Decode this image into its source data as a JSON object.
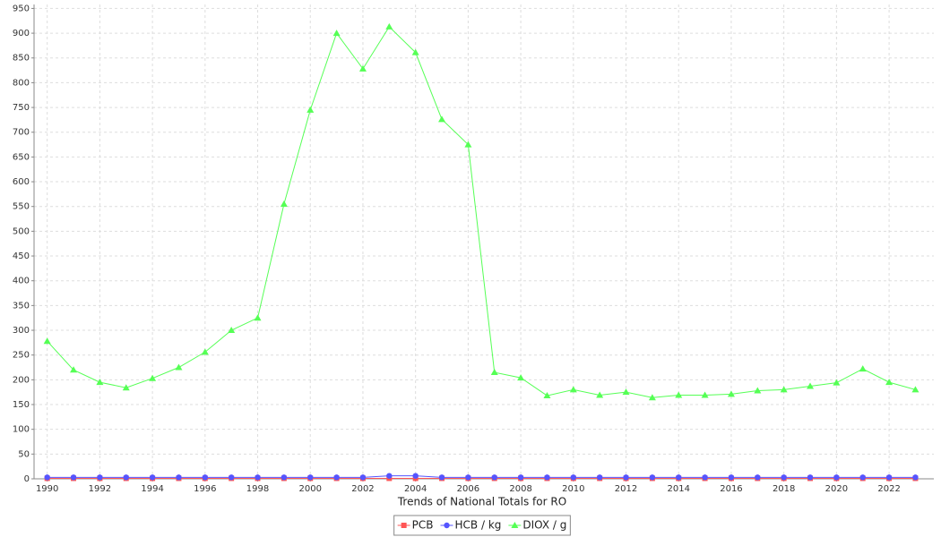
{
  "chart_data": {
    "type": "line",
    "title": "Trends of National Totals for RO",
    "x": [
      1990,
      1991,
      1992,
      1993,
      1994,
      1995,
      1996,
      1997,
      1998,
      1999,
      2000,
      2001,
      2002,
      2003,
      2004,
      2005,
      2006,
      2007,
      2008,
      2009,
      2010,
      2011,
      2012,
      2013,
      2014,
      2015,
      2016,
      2017,
      2018,
      2019,
      2020,
      2021,
      2022,
      2023
    ],
    "series": [
      {
        "name": "PCB",
        "color": "#ff5555",
        "marker": "square",
        "values": [
          1,
          1,
          1,
          1,
          1,
          1,
          1,
          1,
          1,
          1,
          1,
          1,
          1,
          1,
          1,
          1,
          1,
          1,
          1,
          1,
          1,
          1,
          1,
          1,
          1,
          1,
          1,
          1,
          1,
          1,
          1,
          1,
          1,
          1
        ]
      },
      {
        "name": "HCB / kg",
        "color": "#5555ff",
        "marker": "circle",
        "values": [
          3,
          3,
          3,
          3,
          3,
          3,
          3,
          3,
          3,
          3,
          3,
          3,
          3,
          6,
          6,
          3,
          3,
          3,
          3,
          3,
          3,
          3,
          3,
          3,
          3,
          3,
          3,
          3,
          3,
          3,
          3,
          3,
          3,
          3
        ]
      },
      {
        "name": "DIOX / g",
        "color": "#55ff55",
        "marker": "triangle",
        "values": [
          278,
          220,
          195,
          184,
          203,
          225,
          256,
          300,
          325,
          555,
          745,
          900,
          828,
          913,
          861,
          726,
          675,
          215,
          204,
          168,
          180,
          169,
          175,
          164,
          169,
          169,
          171,
          178,
          180,
          187,
          194,
          222,
          195,
          180
        ]
      }
    ],
    "xlim": [
      1989.5,
      2023.7
    ],
    "xticks": [
      1990,
      1992,
      1994,
      1996,
      1998,
      2000,
      2002,
      2004,
      2006,
      2008,
      2010,
      2012,
      2014,
      2016,
      2018,
      2020,
      2022
    ],
    "ylim": [
      0,
      958
    ],
    "yticks": [
      0,
      50,
      100,
      150,
      200,
      250,
      300,
      350,
      400,
      450,
      500,
      550,
      600,
      650,
      700,
      750,
      800,
      850,
      900,
      950
    ],
    "grid": true,
    "legend": "bottom"
  }
}
